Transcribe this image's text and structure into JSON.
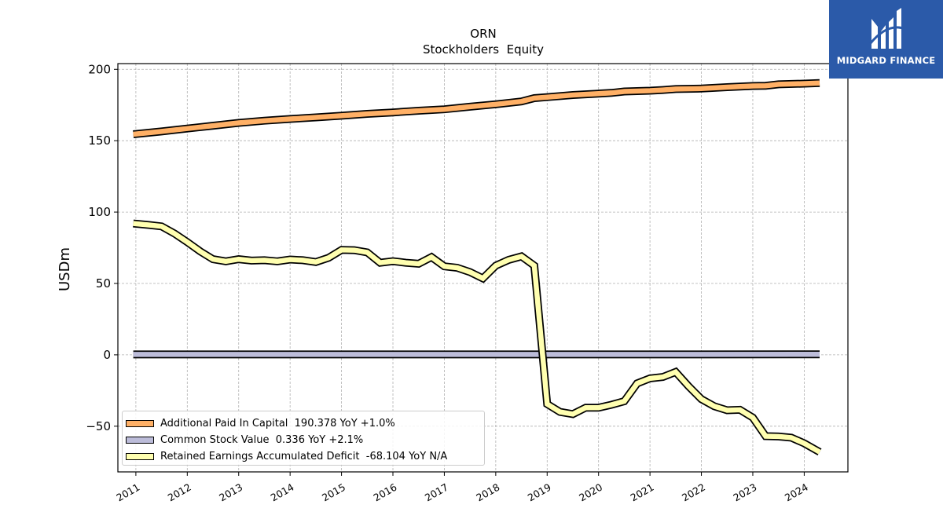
{
  "chart_data": {
    "type": "line",
    "title": "ORN",
    "subtitle": "Stockholders  Equity",
    "ylabel": "USDm",
    "xlabel": "",
    "ylim": [
      -82,
      204
    ],
    "xlim": [
      2010.65,
      2024.85
    ],
    "yticks": [
      -50,
      0,
      50,
      100,
      150,
      200
    ],
    "yticklabels": [
      "−50",
      "0",
      "50",
      "100",
      "150",
      "200"
    ],
    "xticks": [
      2011,
      2012,
      2013,
      2014,
      2015,
      2016,
      2017,
      2018,
      2019,
      2020,
      2021,
      2022,
      2023,
      2024
    ],
    "xticklabels": [
      "2011",
      "2012",
      "2013",
      "2014",
      "2015",
      "2016",
      "2017",
      "2018",
      "2019",
      "2020",
      "2021",
      "2022",
      "2023",
      "2024"
    ],
    "grid": true,
    "legend_position": "lower-left",
    "series": [
      {
        "name": "Additional Paid In Capital",
        "legend_label": "Additional Paid In Capital  190.378 YoY +1.0%",
        "color": "#ffb066",
        "points": [
          [
            2010.95,
            154.5
          ],
          [
            2011.5,
            156.5
          ],
          [
            2012.0,
            158.5
          ],
          [
            2012.5,
            160.5
          ],
          [
            2013.0,
            162.5
          ],
          [
            2013.5,
            164.0
          ],
          [
            2014.0,
            165.2
          ],
          [
            2014.5,
            166.3
          ],
          [
            2015.0,
            167.5
          ],
          [
            2015.5,
            168.8
          ],
          [
            2016.0,
            169.8
          ],
          [
            2016.5,
            171.0
          ],
          [
            2017.0,
            172.0
          ],
          [
            2017.5,
            173.8
          ],
          [
            2018.0,
            175.5
          ],
          [
            2018.5,
            177.5
          ],
          [
            2018.75,
            179.8
          ],
          [
            2019.0,
            180.5
          ],
          [
            2019.5,
            182.0
          ],
          [
            2020.0,
            183.0
          ],
          [
            2020.25,
            183.5
          ],
          [
            2020.5,
            184.5
          ],
          [
            2021.0,
            185.0
          ],
          [
            2021.25,
            185.5
          ],
          [
            2021.5,
            186.2
          ],
          [
            2022.0,
            186.5
          ],
          [
            2022.5,
            187.5
          ],
          [
            2023.0,
            188.3
          ],
          [
            2023.25,
            188.5
          ],
          [
            2023.5,
            189.5
          ],
          [
            2024.0,
            190.0
          ],
          [
            2024.3,
            190.378
          ]
        ]
      },
      {
        "name": "Common Stock Value",
        "legend_label": "Common Stock Value  0.336 YoY +2.1%",
        "color": "#bcbcd9",
        "points": [
          [
            2010.95,
            0.3
          ],
          [
            2024.3,
            0.336
          ]
        ]
      },
      {
        "name": "Retained Earnings Accumulated Deficit",
        "legend_label": "Retained Earnings Accumulated Deficit  -68.104 YoY N/A",
        "color": "#ffffb0",
        "points": [
          [
            2010.95,
            92.0
          ],
          [
            2011.25,
            91.0
          ],
          [
            2011.5,
            90.0
          ],
          [
            2011.75,
            85.0
          ],
          [
            2012.0,
            79.0
          ],
          [
            2012.25,
            72.5
          ],
          [
            2012.5,
            67.0
          ],
          [
            2012.75,
            65.5
          ],
          [
            2013.0,
            67.0
          ],
          [
            2013.25,
            66.0
          ],
          [
            2013.5,
            66.3
          ],
          [
            2013.75,
            65.5
          ],
          [
            2014.0,
            66.8
          ],
          [
            2014.25,
            66.3
          ],
          [
            2014.5,
            65.0
          ],
          [
            2014.75,
            68.0
          ],
          [
            2015.0,
            73.5
          ],
          [
            2015.25,
            73.3
          ],
          [
            2015.5,
            71.8
          ],
          [
            2015.75,
            64.5
          ],
          [
            2016.0,
            65.6
          ],
          [
            2016.25,
            64.5
          ],
          [
            2016.5,
            63.8
          ],
          [
            2016.75,
            68.5
          ],
          [
            2017.0,
            62.0
          ],
          [
            2017.25,
            61.0
          ],
          [
            2017.5,
            58.0
          ],
          [
            2017.75,
            53.5
          ],
          [
            2018.0,
            62.5
          ],
          [
            2018.25,
            66.5
          ],
          [
            2018.5,
            69.0
          ],
          [
            2018.75,
            62.5
          ],
          [
            2019.0,
            -34.5
          ],
          [
            2019.25,
            -40.0
          ],
          [
            2019.5,
            -41.5
          ],
          [
            2019.75,
            -37.0
          ],
          [
            2020.0,
            -37.0
          ],
          [
            2020.25,
            -35.0
          ],
          [
            2020.5,
            -32.5
          ],
          [
            2020.75,
            -20.0
          ],
          [
            2021.0,
            -16.5
          ],
          [
            2021.25,
            -15.5
          ],
          [
            2021.5,
            -12.0
          ],
          [
            2021.75,
            -22.0
          ],
          [
            2022.0,
            -31.0
          ],
          [
            2022.25,
            -36.0
          ],
          [
            2022.5,
            -38.8
          ],
          [
            2022.75,
            -38.5
          ],
          [
            2023.0,
            -44.0
          ],
          [
            2023.25,
            -57.0
          ],
          [
            2023.5,
            -57.2
          ],
          [
            2023.75,
            -58.0
          ],
          [
            2024.0,
            -62.0
          ],
          [
            2024.3,
            -68.104
          ]
        ]
      }
    ]
  },
  "logo": {
    "text": "MIDGARD FINANCE",
    "background": "#2b5aa9"
  }
}
